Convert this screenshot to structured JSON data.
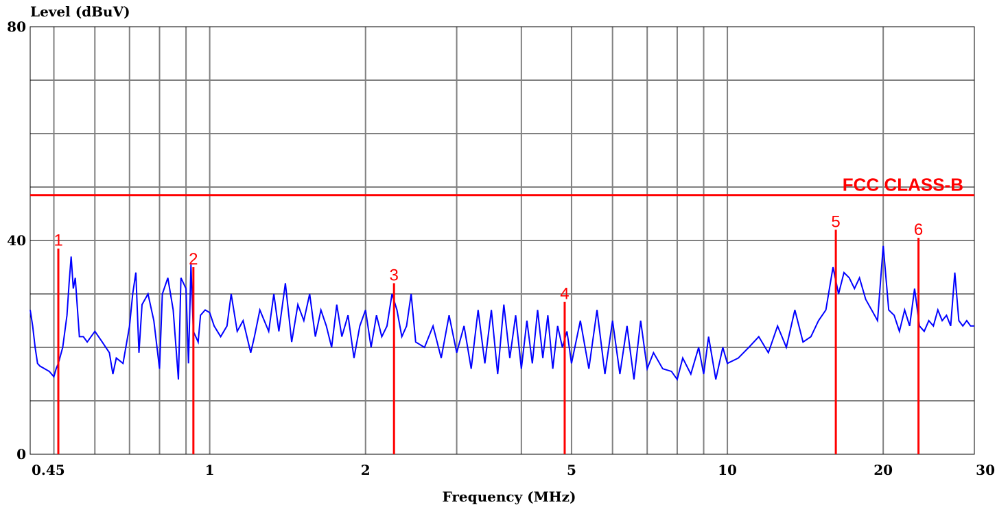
{
  "chart_data": {
    "type": "line",
    "ylabel": "Level (dBuV)",
    "xlabel": "Frequency (MHz)",
    "x_scale": "log",
    "xlim": [
      0.45,
      30
    ],
    "ylim": [
      0,
      80
    ],
    "grid": true,
    "x_tick_labels": [
      {
        "value": 0.45,
        "label": "0.45"
      },
      {
        "value": 1,
        "label": "1"
      },
      {
        "value": 2,
        "label": "2"
      },
      {
        "value": 5,
        "label": "5"
      },
      {
        "value": 10,
        "label": "10"
      },
      {
        "value": 20,
        "label": "20"
      },
      {
        "value": 30,
        "label": "30"
      }
    ],
    "y_tick_labels": [
      {
        "value": 0,
        "label": "0"
      },
      {
        "value": 40,
        "label": "40"
      },
      {
        "value": 80,
        "label": "80"
      }
    ],
    "limit_line": {
      "name": "FCC CLASS-B",
      "value": 48.5,
      "color": "#ff0000"
    },
    "series": [
      {
        "color": "#0000ff",
        "points": [
          [
            0.45,
            27
          ],
          [
            0.455,
            24
          ],
          [
            0.46,
            20
          ],
          [
            0.465,
            17
          ],
          [
            0.47,
            16.5
          ],
          [
            0.48,
            16
          ],
          [
            0.49,
            15.5
          ],
          [
            0.5,
            14.5
          ],
          [
            0.505,
            16
          ],
          [
            0.51,
            17
          ],
          [
            0.52,
            20
          ],
          [
            0.53,
            26
          ],
          [
            0.535,
            32
          ],
          [
            0.54,
            37
          ],
          [
            0.545,
            31
          ],
          [
            0.55,
            33
          ],
          [
            0.56,
            22
          ],
          [
            0.57,
            22
          ],
          [
            0.58,
            21
          ],
          [
            0.6,
            23
          ],
          [
            0.62,
            21
          ],
          [
            0.64,
            19
          ],
          [
            0.65,
            15
          ],
          [
            0.66,
            18
          ],
          [
            0.68,
            17
          ],
          [
            0.7,
            24
          ],
          [
            0.71,
            30
          ],
          [
            0.72,
            34
          ],
          [
            0.73,
            19
          ],
          [
            0.74,
            28
          ],
          [
            0.76,
            30
          ],
          [
            0.78,
            25
          ],
          [
            0.8,
            16
          ],
          [
            0.81,
            30
          ],
          [
            0.83,
            33
          ],
          [
            0.85,
            27
          ],
          [
            0.87,
            14
          ],
          [
            0.88,
            33
          ],
          [
            0.9,
            31
          ],
          [
            0.91,
            17
          ],
          [
            0.92,
            35.5
          ],
          [
            0.93,
            23
          ],
          [
            0.95,
            21
          ],
          [
            0.96,
            26
          ],
          [
            0.98,
            27
          ],
          [
            1.0,
            26.5
          ],
          [
            1.02,
            24
          ],
          [
            1.05,
            22
          ],
          [
            1.08,
            24
          ],
          [
            1.1,
            30
          ],
          [
            1.13,
            23
          ],
          [
            1.16,
            25
          ],
          [
            1.2,
            19
          ],
          [
            1.22,
            22
          ],
          [
            1.25,
            27
          ],
          [
            1.3,
            23
          ],
          [
            1.33,
            30
          ],
          [
            1.36,
            23
          ],
          [
            1.4,
            32
          ],
          [
            1.44,
            21
          ],
          [
            1.48,
            28
          ],
          [
            1.52,
            25
          ],
          [
            1.56,
            30
          ],
          [
            1.6,
            22
          ],
          [
            1.64,
            27
          ],
          [
            1.68,
            24
          ],
          [
            1.72,
            20
          ],
          [
            1.76,
            28
          ],
          [
            1.8,
            22
          ],
          [
            1.85,
            26
          ],
          [
            1.9,
            18
          ],
          [
            1.95,
            24
          ],
          [
            2.0,
            27
          ],
          [
            2.05,
            20
          ],
          [
            2.1,
            26
          ],
          [
            2.15,
            22
          ],
          [
            2.2,
            24
          ],
          [
            2.25,
            30
          ],
          [
            2.3,
            27
          ],
          [
            2.35,
            22
          ],
          [
            2.4,
            24
          ],
          [
            2.45,
            30
          ],
          [
            2.5,
            21
          ],
          [
            2.6,
            20
          ],
          [
            2.7,
            24
          ],
          [
            2.8,
            18
          ],
          [
            2.9,
            26
          ],
          [
            3.0,
            19
          ],
          [
            3.1,
            24
          ],
          [
            3.2,
            16
          ],
          [
            3.3,
            27
          ],
          [
            3.4,
            17
          ],
          [
            3.5,
            27
          ],
          [
            3.6,
            15
          ],
          [
            3.7,
            28
          ],
          [
            3.8,
            18
          ],
          [
            3.9,
            26
          ],
          [
            4.0,
            16
          ],
          [
            4.1,
            25
          ],
          [
            4.2,
            17
          ],
          [
            4.3,
            27
          ],
          [
            4.4,
            18
          ],
          [
            4.5,
            26
          ],
          [
            4.6,
            16
          ],
          [
            4.7,
            24
          ],
          [
            4.8,
            20
          ],
          [
            4.9,
            23
          ],
          [
            5.0,
            17
          ],
          [
            5.2,
            25
          ],
          [
            5.4,
            16
          ],
          [
            5.6,
            27
          ],
          [
            5.8,
            15
          ],
          [
            6.0,
            25
          ],
          [
            6.2,
            15
          ],
          [
            6.4,
            24
          ],
          [
            6.6,
            14
          ],
          [
            6.8,
            25
          ],
          [
            7.0,
            16
          ],
          [
            7.2,
            19
          ],
          [
            7.5,
            16
          ],
          [
            7.8,
            15.5
          ],
          [
            8.0,
            14
          ],
          [
            8.2,
            18
          ],
          [
            8.5,
            15
          ],
          [
            8.8,
            20
          ],
          [
            9.0,
            15
          ],
          [
            9.2,
            22
          ],
          [
            9.5,
            14
          ],
          [
            9.8,
            20
          ],
          [
            10.0,
            17
          ],
          [
            10.5,
            18
          ],
          [
            11.0,
            20
          ],
          [
            11.5,
            22
          ],
          [
            12.0,
            19
          ],
          [
            12.5,
            24
          ],
          [
            13.0,
            20
          ],
          [
            13.5,
            27
          ],
          [
            14.0,
            21
          ],
          [
            14.5,
            22
          ],
          [
            15.0,
            25
          ],
          [
            15.5,
            27
          ],
          [
            16.0,
            35
          ],
          [
            16.4,
            30
          ],
          [
            16.8,
            34
          ],
          [
            17.2,
            33
          ],
          [
            17.6,
            31
          ],
          [
            18.0,
            33
          ],
          [
            18.5,
            29
          ],
          [
            19.0,
            27
          ],
          [
            19.5,
            25
          ],
          [
            20.0,
            39
          ],
          [
            20.5,
            27
          ],
          [
            21.0,
            26
          ],
          [
            21.5,
            23
          ],
          [
            22.0,
            27
          ],
          [
            22.5,
            24
          ],
          [
            23.0,
            31
          ],
          [
            23.5,
            24
          ],
          [
            24.0,
            23
          ],
          [
            24.5,
            25
          ],
          [
            25.0,
            24
          ],
          [
            25.5,
            27
          ],
          [
            26.0,
            25
          ],
          [
            26.5,
            26
          ],
          [
            27.0,
            24
          ],
          [
            27.5,
            34
          ],
          [
            28.0,
            25
          ],
          [
            28.5,
            24
          ],
          [
            29.0,
            25
          ],
          [
            29.5,
            24
          ],
          [
            30.0,
            24
          ]
        ]
      }
    ],
    "markers": [
      {
        "label": "1",
        "x": 0.51,
        "y": 38.5
      },
      {
        "label": "2",
        "x": 0.93,
        "y": 35
      },
      {
        "label": "3",
        "x": 2.27,
        "y": 32
      },
      {
        "label": "4",
        "x": 4.85,
        "y": 28.5
      },
      {
        "label": "5",
        "x": 16.2,
        "y": 42
      },
      {
        "label": "6",
        "x": 23.4,
        "y": 40.5
      }
    ]
  }
}
